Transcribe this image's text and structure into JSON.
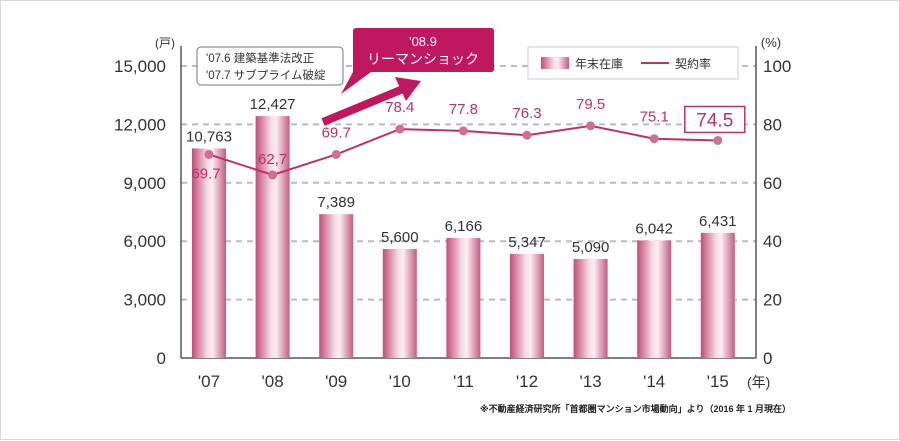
{
  "chart_data": {
    "type": "bar+line",
    "categories": [
      "'07",
      "'08",
      "'09",
      "'10",
      "'11",
      "'12",
      "'13",
      "'14",
      "'15"
    ],
    "x_unit": "(年)",
    "left_axis": {
      "unit": "(戸)",
      "ylim": [
        0,
        15000
      ],
      "ticks": [
        "0",
        "3,000",
        "6,000",
        "9,000",
        "12,000",
        "15,000"
      ]
    },
    "right_axis": {
      "unit": "(%)",
      "ylim": [
        0,
        100
      ],
      "ticks": [
        "0",
        "20",
        "40",
        "60",
        "80",
        "100"
      ]
    },
    "grid": "dashed horizontal",
    "legend_position": "top-right",
    "series": [
      {
        "name": "年末在庫",
        "type": "bar",
        "axis": "left",
        "values": [
          10763,
          12427,
          7389,
          5600,
          6166,
          5347,
          5090,
          6042,
          6431
        ],
        "labels": [
          "10,763",
          "12,427",
          "7,389",
          "5,600",
          "6,166",
          "5,347",
          "5,090",
          "6,042",
          "6,431"
        ],
        "color": "#c9597f"
      },
      {
        "name": "契約率",
        "type": "line",
        "axis": "right",
        "values": [
          69.7,
          62.7,
          69.7,
          78.4,
          77.8,
          76.3,
          79.5,
          75.1,
          74.5
        ],
        "labels": [
          "69.7",
          "62,7",
          "69.7",
          "78.4",
          "77.8",
          "76.3",
          "79.5",
          "75.1",
          "74.5"
        ],
        "color": "#b8336a"
      }
    ],
    "annotations": {
      "events_box": [
        "'07.6  建築基準法改正",
        "'07.7  サブプライム破綻"
      ],
      "callout": [
        "'08.9",
        "リーマンショック"
      ],
      "callout_color": "#c0185f"
    },
    "source": "※不動産経済研究所「首都圏マンション市場動向」より（2016 年 1 月現在）"
  }
}
